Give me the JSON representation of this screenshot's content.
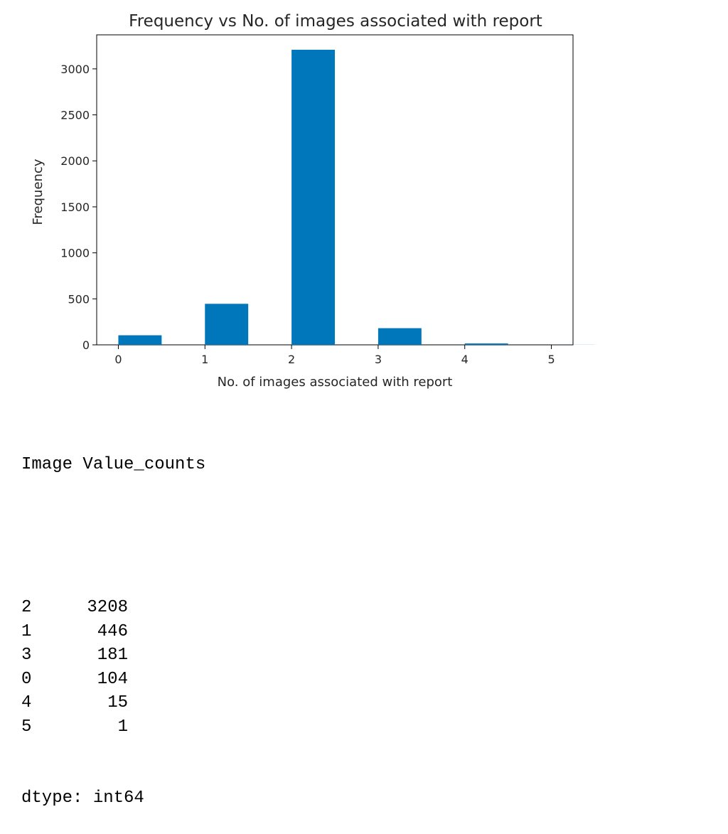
{
  "chart_data": {
    "type": "bar",
    "title": "Frequency vs No. of images associated with report",
    "xlabel": "No. of images associated with report",
    "ylabel": "Frequency",
    "x": [
      0,
      1,
      2,
      3,
      4,
      5
    ],
    "values": [
      104,
      446,
      3208,
      181,
      15,
      1
    ],
    "bar_width": 0.5,
    "xlim": [
      -0.25,
      5.25
    ],
    "ylim": [
      0,
      3370
    ],
    "xticks": [
      0,
      1,
      2,
      3,
      4,
      5
    ],
    "yticks": [
      0,
      500,
      1000,
      1500,
      2000,
      2500,
      3000
    ],
    "bar_color": "#0077bb",
    "grid": false,
    "legend": "none"
  },
  "output": {
    "heading": "Image Value_counts",
    "rows": [
      {
        "index": "2",
        "count": "3208"
      },
      {
        "index": "1",
        "count": "446"
      },
      {
        "index": "3",
        "count": "181"
      },
      {
        "index": "0",
        "count": "104"
      },
      {
        "index": "4",
        "count": "15"
      },
      {
        "index": "5",
        "count": "1"
      }
    ],
    "dtype": "dtype: int64"
  }
}
